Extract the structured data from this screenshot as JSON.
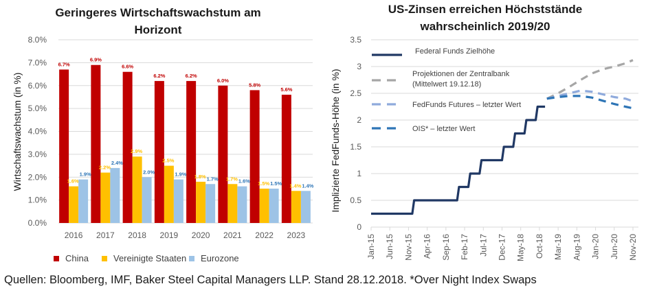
{
  "chart_data": [
    {
      "type": "bar",
      "title": "Geringeres Wirtschaftswachstum am Horizont",
      "title_lines": [
        "Geringeres Wirtschaftswachstum am",
        "Horizont"
      ],
      "xlabel": "",
      "ylabel": "Wirtschaftswachstum (in %)",
      "ylim": [
        0,
        8
      ],
      "yticks": [
        0,
        1,
        2,
        3,
        4,
        5,
        6,
        7,
        8
      ],
      "ytick_labels": [
        "0.0%",
        "1.0%",
        "2.0%",
        "3.0%",
        "4.0%",
        "5.0%",
        "6.0%",
        "7.0%",
        "8.0%"
      ],
      "grid": true,
      "legend_position": "bottom",
      "categories": [
        "2016",
        "2017",
        "2018",
        "2019",
        "2020",
        "2021",
        "2022",
        "2023"
      ],
      "series": [
        {
          "name": "China",
          "color": "#c00000",
          "values": [
            6.7,
            6.9,
            6.6,
            6.2,
            6.2,
            6.0,
            5.8,
            5.6
          ],
          "labels": [
            "6.7%",
            "6.9%",
            "6.6%",
            "6.2%",
            "6.2%",
            "6.0%",
            "5.8%",
            "5.6%"
          ]
        },
        {
          "name": "Vereinigte Staaten",
          "color": "#ffc000",
          "values": [
            1.6,
            2.2,
            2.9,
            2.5,
            1.8,
            1.7,
            1.5,
            1.4
          ],
          "labels": [
            "1.6%",
            "2.2%",
            "2.9%",
            "2.5%",
            "1.8%",
            "1.7%",
            "1.5%",
            "1.4%"
          ]
        },
        {
          "name": "Eurozone",
          "color": "#9dc3e6",
          "label_color": "#2e75b6",
          "values": [
            1.9,
            2.4,
            2.0,
            1.9,
            1.7,
            1.6,
            1.5,
            1.4
          ],
          "labels": [
            "1.9%",
            "2.4%",
            "2.0%",
            "1.9%",
            "1.7%",
            "1.6%",
            "1.5%",
            "1.4%"
          ]
        }
      ]
    },
    {
      "type": "line",
      "title": "US-Zinsen erreichen Höchststände wahrscheinlich 2019/20",
      "title_lines": [
        "US-Zinsen erreichen Höchststände",
        "wahrscheinlich 2019/20"
      ],
      "xlabel": "",
      "ylabel": "Implizierte FedFunds-Höhe (in %)",
      "ylim": [
        0,
        3.5
      ],
      "yticks": [
        0,
        0.5,
        1,
        1.5,
        2,
        2.5,
        3,
        3.5
      ],
      "ytick_labels": [
        "0",
        "0.5",
        "1",
        "1.5",
        "2",
        "2.5",
        "3",
        "3.5"
      ],
      "xlim_months": [
        0,
        70
      ],
      "xtick_months": [
        0,
        5,
        10,
        15,
        20,
        25,
        30,
        35,
        40,
        45,
        50,
        55,
        60,
        65,
        70
      ],
      "xtick_labels": [
        "Jan-15",
        "Jun-15",
        "Nov-15",
        "Apr-16",
        "Sep-16",
        "Feb-17",
        "Jul-17",
        "Dec-17",
        "May-18",
        "Oct-18",
        "Mar-19",
        "Aug-19",
        "Jan-20",
        "Jun-20",
        "Nov-20"
      ],
      "grid": true,
      "legend_position": "top-left",
      "x_unit": "months since Jan-15",
      "series": [
        {
          "name": "Federal Funds Zielhöhe",
          "color": "#203864",
          "style": "solid",
          "x": [
            0,
            11,
            11.5,
            23,
            23.5,
            26,
            26.5,
            29,
            29.5,
            35,
            35.5,
            38,
            38.5,
            41,
            41.5,
            44,
            44.5,
            46.5
          ],
          "y": [
            0.25,
            0.25,
            0.5,
            0.5,
            0.75,
            0.75,
            1.0,
            1.0,
            1.25,
            1.25,
            1.5,
            1.5,
            1.75,
            1.75,
            2.0,
            2.0,
            2.25,
            2.25
          ]
        },
        {
          "name": "Projektionen der Zentralbank (Mittelwert 19.12.18)",
          "legend_lines": [
            "Projektionen der Zentralbank",
            "(Mittelwert 19.12.18)"
          ],
          "color": "#a6a6a6",
          "style": "dashed",
          "x": [
            47,
            50,
            53,
            56,
            59,
            62,
            65,
            68,
            70
          ],
          "y": [
            2.4,
            2.5,
            2.62,
            2.75,
            2.87,
            2.95,
            3.0,
            3.06,
            3.12
          ]
        },
        {
          "name": "FedFunds Futures – letzter Wert",
          "color": "#8faadc",
          "style": "dashed",
          "x": [
            47,
            50,
            53,
            56,
            59,
            62,
            65,
            68,
            70
          ],
          "y": [
            2.4,
            2.45,
            2.5,
            2.55,
            2.53,
            2.48,
            2.43,
            2.4,
            2.35
          ]
        },
        {
          "name": "OIS* – letzter Wert",
          "color": "#2e75b6",
          "style": "dashed",
          "x": [
            47,
            50,
            53,
            56,
            59,
            62,
            65,
            68,
            70
          ],
          "y": [
            2.4,
            2.43,
            2.45,
            2.45,
            2.42,
            2.36,
            2.3,
            2.25,
            2.22
          ]
        }
      ]
    }
  ],
  "footer": "Quellen: Bloomberg, IMF, Baker Steel Capital Managers LLP. Stand 28.12.2018. *Over Night Index Swaps"
}
